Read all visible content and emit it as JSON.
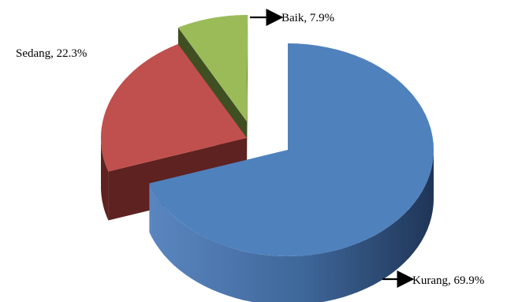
{
  "chart_data": {
    "type": "pie",
    "style": "3d-exploded",
    "title": "",
    "slices": [
      {
        "label": "Kurang",
        "value": 69.9,
        "text": "Kurang, 69.9%",
        "color": "#4F81BD",
        "side_color": "#2C4A78"
      },
      {
        "label": "Sedang",
        "value": 22.3,
        "text": "Sedang, 22.3%",
        "color": "#C0504D",
        "side_color": "#5E2220"
      },
      {
        "label": "Baik",
        "value": 7.9,
        "text": "Baik, 7.9%",
        "color": "#9BBB59",
        "side_color": "#3F4F22"
      }
    ]
  }
}
